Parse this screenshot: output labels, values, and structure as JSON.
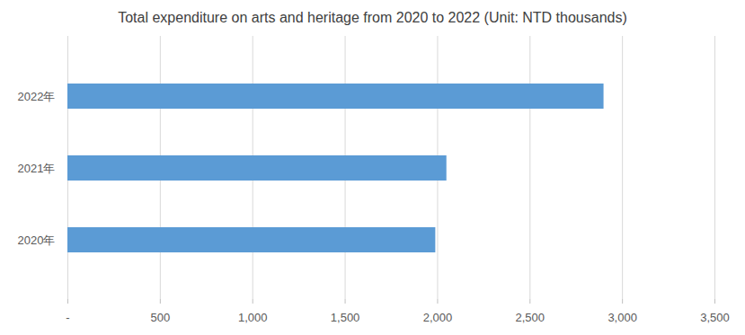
{
  "chart_data": {
    "type": "bar",
    "orientation": "horizontal",
    "title": "Total expenditure on arts and heritage from 2020 to 2022 (Unit: NTD thousands)",
    "categories": [
      "2022年",
      "2021年",
      "2020年"
    ],
    "values": [
      2900,
      2050,
      1990
    ],
    "color": "#5b9bd5",
    "xlim": [
      0,
      3500
    ],
    "xticks": [
      {
        "value": 0,
        "label": "-"
      },
      500,
      {
        "value": 1000,
        "label": "1,000"
      },
      {
        "value": 1500,
        "label": "1,500"
      },
      {
        "value": 2000,
        "label": "2,000"
      },
      {
        "value": 2500,
        "label": "2,500"
      },
      {
        "value": 3000,
        "label": "3,000"
      },
      {
        "value": 3500,
        "label": "3,500"
      }
    ],
    "grid": true
  }
}
